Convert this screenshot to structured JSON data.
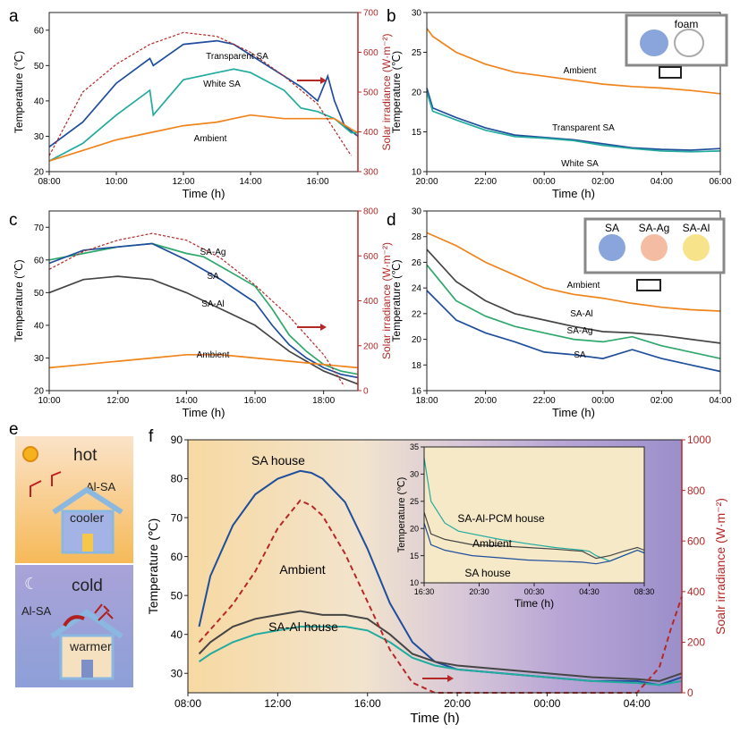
{
  "panel_letters": {
    "a": "a",
    "b": "b",
    "c": "c",
    "d": "d",
    "e": "e",
    "f": "f"
  },
  "colors": {
    "blue": "#1f4e9c",
    "teal": "#22ab9e",
    "orange": "#f0841c",
    "dark": "#454545",
    "green": "#2fa86c",
    "red": "#b02020",
    "solar": "#b52828"
  },
  "schematic_e": {
    "hot_label": "hot",
    "cold_label": "cold",
    "top_material": "Al-SA",
    "bottom_material": "Al-SA",
    "cooler_label": "cooler",
    "warmer_label": "warmer"
  },
  "legend_b": {
    "title": "foam"
  },
  "legend_d": {
    "labels": [
      "SA",
      "SA-Ag",
      "SA-Al"
    ]
  },
  "chart_data": [
    {
      "id": "a",
      "type": "line",
      "xlabel": "Time (h)",
      "ylabel": "Temperature (℃)",
      "y2label": "Solar irradiance (W·m⁻²)",
      "xlim": [
        8,
        17.2
      ],
      "ylim": [
        20,
        65
      ],
      "y2lim": [
        300,
        700
      ],
      "xticks": [
        "08:00",
        "10:00",
        "12:00",
        "14:00",
        "16:00"
      ],
      "yticks": [
        "20",
        "30",
        "40",
        "50",
        "60"
      ],
      "y2ticks": [
        "300",
        "400",
        "500",
        "600",
        "700"
      ],
      "series": [
        {
          "name": "Transparent SA",
          "color": "#1f4e9c",
          "x": [
            8,
            9,
            10,
            11,
            11.1,
            12,
            13,
            13.5,
            14,
            15,
            15.5,
            16,
            16.3,
            16.5,
            16.8,
            17.2
          ],
          "y": [
            27,
            34,
            45,
            52,
            50,
            56,
            57,
            56,
            53,
            47,
            44,
            40,
            47,
            40,
            33,
            30
          ]
        },
        {
          "name": "White SA",
          "color": "#22ab9e",
          "x": [
            8,
            9,
            10,
            11,
            11.1,
            12,
            13,
            13.5,
            14,
            15,
            15.5,
            16,
            16.5,
            17,
            17.2
          ],
          "y": [
            23,
            28,
            36,
            43,
            36,
            46,
            48,
            49,
            48,
            43,
            38,
            37,
            35,
            31,
            31
          ]
        },
        {
          "name": "Ambient",
          "color": "#f0841c",
          "x": [
            8,
            9,
            10,
            11,
            12,
            13,
            14,
            15,
            16,
            16.5,
            17,
            17.2
          ],
          "y": [
            23,
            26,
            29,
            31,
            33,
            34,
            36,
            35,
            35,
            35,
            32,
            31
          ]
        },
        {
          "name": "Solar irradiance",
          "color": "#b52828",
          "dashed": true,
          "axis": "y2",
          "x": [
            8,
            9,
            10,
            11,
            12,
            13,
            14,
            15,
            16,
            17
          ],
          "y": [
            340,
            500,
            570,
            620,
            650,
            640,
            600,
            540,
            470,
            340
          ]
        }
      ],
      "annotations": [
        "Transparent SA",
        "White SA",
        "Ambient"
      ]
    },
    {
      "id": "b",
      "type": "line",
      "xlabel": "Time (h)",
      "ylabel": "Temperature (℃)",
      "xlim": [
        20,
        30
      ],
      "ylim": [
        10,
        30
      ],
      "xticks": [
        "20:00",
        "22:00",
        "00:00",
        "02:00",
        "04:00",
        "06:00"
      ],
      "yticks": [
        "10",
        "15",
        "20",
        "25",
        "30"
      ],
      "series": [
        {
          "name": "Ambient",
          "color": "#f0841c",
          "x": [
            20,
            20.2,
            21,
            22,
            23,
            24,
            25,
            26,
            27,
            28,
            29,
            30
          ],
          "y": [
            28,
            27,
            25,
            23.5,
            22.5,
            22,
            21.5,
            21,
            20.7,
            20.5,
            20.2,
            19.8
          ]
        },
        {
          "name": "Transparent SA",
          "color": "#1f4e9c",
          "x": [
            20,
            20.2,
            21,
            22,
            23,
            24,
            25,
            26,
            27,
            28,
            29,
            30
          ],
          "y": [
            20.5,
            18,
            16.8,
            15.5,
            14.6,
            14.3,
            14,
            13.5,
            13,
            12.8,
            12.7,
            12.9
          ]
        },
        {
          "name": "White SA",
          "color": "#22ab9e",
          "x": [
            20,
            20.2,
            21,
            22,
            23,
            24,
            25,
            26,
            27,
            28,
            29,
            30
          ],
          "y": [
            20,
            17.6,
            16.5,
            15.2,
            14.4,
            14.2,
            13.9,
            13.3,
            12.9,
            12.6,
            12.5,
            12.6
          ]
        }
      ],
      "annotations": [
        "Ambient",
        "Transparent SA",
        "White SA"
      ]
    },
    {
      "id": "c",
      "type": "line",
      "xlabel": "Time (h)",
      "ylabel": "Temperature (℃)",
      "y2label": "Solar irradiance (W·m⁻²)",
      "xlim": [
        10,
        19
      ],
      "ylim": [
        20,
        75
      ],
      "y2lim": [
        0,
        800
      ],
      "xticks": [
        "10:00",
        "12:00",
        "14:00",
        "16:00",
        "18:00"
      ],
      "yticks": [
        "20",
        "30",
        "40",
        "50",
        "60",
        "70"
      ],
      "y2ticks": [
        "0",
        "200",
        "400",
        "600",
        "800"
      ],
      "series": [
        {
          "name": "SA-Ag",
          "color": "#2fa86c",
          "x": [
            10,
            11,
            12,
            13,
            14,
            14.5,
            15,
            16,
            16.5,
            17,
            17.5,
            18,
            18.5,
            19
          ],
          "y": [
            60,
            62,
            64,
            65,
            62,
            61,
            58,
            52,
            45,
            37,
            32,
            28,
            26,
            25
          ]
        },
        {
          "name": "SA",
          "color": "#1f4e9c",
          "x": [
            10,
            11,
            12,
            13,
            14,
            14.5,
            15,
            16,
            16.5,
            17,
            17.5,
            18,
            18.5,
            19
          ],
          "y": [
            59,
            63,
            64,
            65,
            60,
            57,
            54,
            47,
            40,
            34,
            30,
            27,
            25,
            24
          ]
        },
        {
          "name": "SA-Al",
          "color": "#454545",
          "x": [
            10,
            11,
            12,
            13,
            14,
            15,
            16,
            16.5,
            17,
            17.5,
            18,
            18.5,
            19
          ],
          "y": [
            50,
            54,
            55,
            54,
            50,
            45,
            40,
            36,
            32,
            29,
            26,
            24,
            22
          ]
        },
        {
          "name": "Ambient",
          "color": "#f0841c",
          "x": [
            10,
            11,
            12,
            13,
            14,
            15,
            16,
            17,
            18,
            19
          ],
          "y": [
            27,
            28,
            29,
            30,
            31,
            31,
            30,
            29,
            28,
            27
          ]
        },
        {
          "name": "Solar irradiance",
          "color": "#b52828",
          "dashed": true,
          "axis": "y2",
          "x": [
            10,
            11,
            12,
            13,
            14,
            15,
            16,
            17,
            18,
            18.6
          ],
          "y": [
            540,
            620,
            670,
            700,
            670,
            590,
            470,
            330,
            160,
            20
          ]
        }
      ],
      "annotations": [
        "SA-Ag",
        "SA",
        "SA-Al",
        "Ambient"
      ]
    },
    {
      "id": "d",
      "type": "line",
      "xlabel": "Time (h)",
      "ylabel": "Temperature (℃)",
      "xlim": [
        18,
        28
      ],
      "ylim": [
        16,
        30
      ],
      "xticks": [
        "18:00",
        "20:00",
        "22:00",
        "00:00",
        "02:00",
        "04:00"
      ],
      "yticks": [
        "16",
        "18",
        "20",
        "22",
        "24",
        "26",
        "28",
        "30"
      ],
      "series": [
        {
          "name": "Ambient",
          "color": "#f0841c",
          "x": [
            18,
            19,
            20,
            21,
            22,
            23,
            24,
            25,
            26,
            27,
            28
          ],
          "y": [
            28.3,
            27.3,
            26,
            25,
            24,
            23.5,
            23.2,
            22.8,
            22.5,
            22.3,
            22.2
          ]
        },
        {
          "name": "SA-Al",
          "color": "#454545",
          "x": [
            18,
            19,
            20,
            21,
            22,
            23,
            24,
            25,
            26,
            27,
            28
          ],
          "y": [
            27,
            24.5,
            23,
            22,
            21.5,
            21,
            20.6,
            20.5,
            20.3,
            20,
            19.7
          ]
        },
        {
          "name": "SA-Ag",
          "color": "#2fa86c",
          "x": [
            18,
            19,
            20,
            21,
            22,
            23,
            24,
            25,
            26,
            27,
            28
          ],
          "y": [
            25.8,
            23,
            21.8,
            21,
            20.5,
            20,
            19.8,
            20.2,
            19.5,
            19,
            18.5
          ]
        },
        {
          "name": "SA",
          "color": "#1f4e9c",
          "x": [
            18,
            19,
            20,
            21,
            22,
            23,
            24,
            25,
            26,
            27,
            28
          ],
          "y": [
            23.8,
            21.5,
            20.5,
            19.8,
            19,
            18.8,
            18.5,
            19.2,
            18.5,
            18,
            17.5
          ]
        }
      ],
      "annotations": [
        "Ambient",
        "SA-Al",
        "SA-Ag",
        "SA"
      ]
    },
    {
      "id": "f",
      "type": "line",
      "xlabel": "Time (h)",
      "ylabel": "Temperature (℃)",
      "y2label": "Soalr irradiance (W·m⁻²)",
      "xlim": [
        8,
        30
      ],
      "ylim": [
        25,
        90
      ],
      "y2lim": [
        0,
        1000
      ],
      "xticks": [
        "08:00",
        "12:00",
        "16:00",
        "20:00",
        "00:00",
        "04:00"
      ],
      "yticks": [
        "30",
        "40",
        "50",
        "60",
        "70",
        "80",
        "90"
      ],
      "y2ticks": [
        "0",
        "200",
        "400",
        "600",
        "800",
        "1000"
      ],
      "series": [
        {
          "name": "SA house",
          "color": "#1f4e9c",
          "x": [
            8.5,
            9,
            10,
            11,
            12,
            13,
            13.5,
            14,
            15,
            16,
            17,
            18,
            19,
            20,
            22,
            24,
            26,
            28,
            29,
            30
          ],
          "y": [
            42,
            55,
            68,
            76,
            80,
            82,
            81.5,
            80,
            74,
            62,
            48,
            38,
            33,
            31,
            30,
            29,
            28,
            28,
            27,
            29
          ]
        },
        {
          "name": "Ambient",
          "color": "#454545",
          "x": [
            8.5,
            9,
            10,
            11,
            12,
            13,
            14,
            15,
            16,
            17,
            18,
            19,
            20,
            22,
            24,
            26,
            28,
            29,
            30
          ],
          "y": [
            35,
            38,
            42,
            44,
            45,
            46,
            45,
            45,
            44,
            40,
            35,
            33,
            32,
            31,
            30,
            29,
            28.5,
            28,
            30
          ]
        },
        {
          "name": "SA-Al house",
          "color": "#22ab9e",
          "x": [
            8.5,
            9,
            10,
            11,
            12,
            13,
            14,
            15,
            16,
            17,
            18,
            19,
            20,
            22,
            24,
            26,
            28,
            29,
            30
          ],
          "y": [
            33,
            35,
            38,
            40,
            41,
            42,
            42,
            42,
            41,
            38,
            34,
            32,
            31,
            30,
            29,
            28,
            27.5,
            27,
            28
          ]
        },
        {
          "name": "Solar irradiance",
          "color": "#b52828",
          "dashed": true,
          "axis": "y2",
          "x": [
            8.5,
            9,
            10,
            11,
            12,
            13,
            13.5,
            14,
            15,
            16,
            17,
            18,
            19,
            20,
            26,
            27,
            28,
            29,
            29.5,
            30
          ],
          "y": [
            200,
            250,
            350,
            480,
            650,
            760,
            740,
            700,
            550,
            360,
            170,
            40,
            0,
            0,
            0,
            0,
            0,
            100,
            250,
            380
          ]
        }
      ],
      "annotations": [
        "SA house",
        "Ambient",
        "SA-Al house"
      ]
    },
    {
      "id": "f-inset",
      "type": "line",
      "xlabel": "Time (h)",
      "ylabel": "Temperature (℃)",
      "xlim": [
        16.5,
        32.5
      ],
      "ylim": [
        10,
        35
      ],
      "xticks": [
        "16:30",
        "20:30",
        "00:30",
        "04:30",
        "08:30"
      ],
      "yticks": [
        "10",
        "15",
        "20",
        "25",
        "30",
        "35"
      ],
      "series": [
        {
          "name": "SA-Al-PCM house",
          "color": "#22ab9e",
          "x": [
            16.5,
            17,
            18,
            19,
            20,
            22,
            24,
            26,
            28,
            28.5,
            29,
            30,
            31,
            32,
            32.5
          ],
          "y": [
            33,
            25,
            21,
            19.5,
            19,
            18,
            17.2,
            16.5,
            16,
            15.8,
            15,
            14,
            15,
            16,
            15.5
          ]
        },
        {
          "name": "Ambient",
          "color": "#454545",
          "x": [
            16.5,
            17,
            18,
            19,
            20,
            22,
            24,
            26,
            28,
            29,
            30,
            31,
            32,
            32.5
          ],
          "y": [
            23,
            19,
            18,
            17.5,
            17,
            16.8,
            16.5,
            16.2,
            15.8,
            14.5,
            15,
            15.8,
            16.5,
            16
          ]
        },
        {
          "name": "SA house",
          "color": "#1f4e9c",
          "x": [
            16.5,
            17,
            18,
            19,
            20,
            22,
            24,
            26,
            28,
            29,
            30,
            31,
            32,
            32.5
          ],
          "y": [
            21,
            17,
            16,
            15.5,
            15,
            14.6,
            14.2,
            14,
            13.8,
            13.5,
            14,
            15,
            16,
            15.5
          ]
        }
      ],
      "annotations": [
        "SA-Al-PCM house",
        "Ambient",
        "SA house"
      ]
    }
  ]
}
